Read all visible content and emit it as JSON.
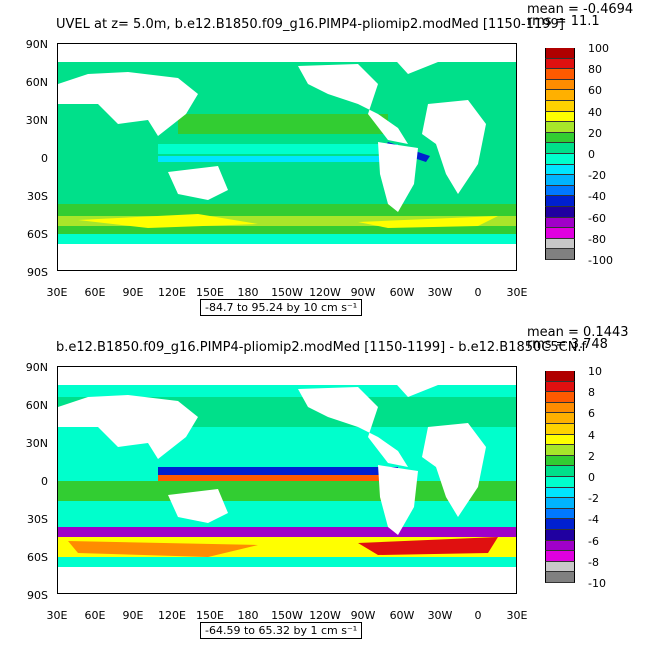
{
  "panels": [
    {
      "title": "UVEL at z=    5.0m, b.e12.B1850.f09_g16.PIMP4-pliomip2.modMed [1150-1199]",
      "mean": "mean = -0.4694",
      "rms": "rms = 11.1",
      "range": "-84.7 to 95.24 by 10 cm s⁻¹",
      "colorbar_labels": [
        "100",
        "80",
        "60",
        "40",
        "20",
        "0",
        "-20",
        "-40",
        "-60",
        "-80",
        "-100"
      ],
      "colors": [
        "#b00000",
        "#e01010",
        "#ff5a00",
        "#ff8c00",
        "#ffb000",
        "#ffd200",
        "#ffff00",
        "#a8e62a",
        "#32cd32",
        "#00e08a",
        "#00ffcc",
        "#00e5ff",
        "#00b4ff",
        "#0078ff",
        "#0020d0",
        "#2000a0",
        "#a000c8",
        "#e000e0",
        "#c8c8c8",
        "#808080"
      ]
    },
    {
      "title": "b.e12.B1850.f09_g16.PIMP4-pliomip2.modMed [1150-1199] - b.e12.B1850C5CN.f",
      "mean": "mean = 0.1443",
      "rms": "rms = 3.748",
      "range": "-64.59 to 65.32 by 1 cm s⁻¹",
      "colorbar_labels": [
        "10",
        "8",
        "6",
        "4",
        "2",
        "0",
        "-2",
        "-4",
        "-6",
        "-8",
        "-10"
      ],
      "colors": [
        "#b00000",
        "#e01010",
        "#ff5a00",
        "#ff8c00",
        "#ffb000",
        "#ffd200",
        "#ffff00",
        "#a8e62a",
        "#32cd32",
        "#00e08a",
        "#00ffcc",
        "#00e5ff",
        "#00b4ff",
        "#0078ff",
        "#0020d0",
        "#2000a0",
        "#a000c8",
        "#e000e0",
        "#c8c8c8",
        "#808080"
      ]
    }
  ],
  "axes": {
    "lat_labels": [
      "90N",
      "60N",
      "30N",
      "0",
      "30S",
      "60S",
      "90S"
    ],
    "lon_labels": [
      "30E",
      "60E",
      "90E",
      "120E",
      "150E",
      "180",
      "150W",
      "120W",
      "90W",
      "60W",
      "30W",
      "0",
      "30E"
    ]
  }
}
